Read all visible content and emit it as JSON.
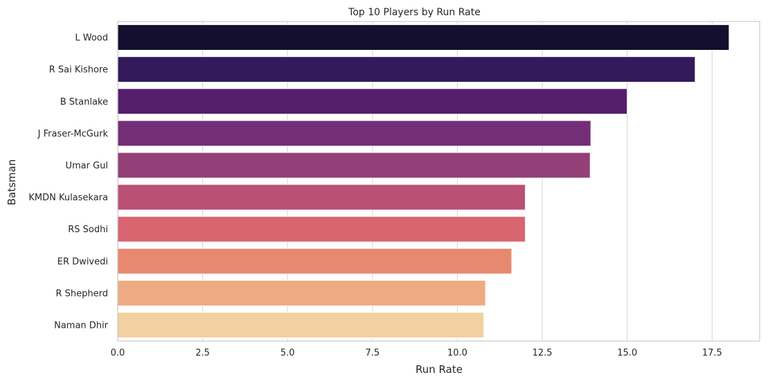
{
  "chart_data": {
    "type": "bar",
    "orientation": "horizontal",
    "title": "Top 10 Players by Run Rate",
    "xlabel": "Run Rate",
    "ylabel": "Batsman",
    "xlim": [
      0,
      18.9
    ],
    "xticks": [
      0.0,
      2.5,
      5.0,
      7.5,
      10.0,
      12.5,
      15.0,
      17.5
    ],
    "xtick_labels": [
      "0.0",
      "2.5",
      "5.0",
      "7.5",
      "10.0",
      "12.5",
      "15.0",
      "17.5"
    ],
    "grid": true,
    "categories": [
      "L Wood",
      "R Sai Kishore",
      "B Stanlake",
      "J Fraser-McGurk",
      "Umar Gul",
      "KMDN Kulasekara",
      "RS Sodhi",
      "ER Dwivedi",
      "R Shepherd",
      "Naman Dhir"
    ],
    "values": [
      18.0,
      17.0,
      15.0,
      13.93,
      13.91,
      12.0,
      12.0,
      11.6,
      10.83,
      10.78
    ],
    "colors": [
      "#140f2e",
      "#331a5b",
      "#561f6e",
      "#742e77",
      "#933f78",
      "#bb5075",
      "#d8656f",
      "#e78970",
      "#eeab83",
      "#f2d0a0"
    ]
  }
}
